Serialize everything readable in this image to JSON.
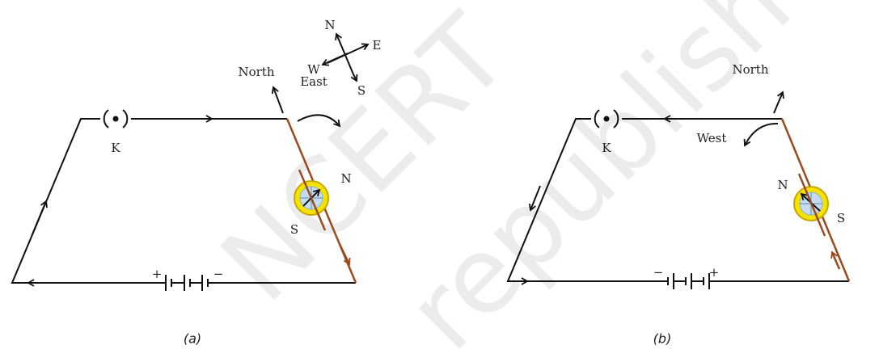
{
  "watermark": [
    "NCERT",
    "republished"
  ],
  "compass_rose": {
    "north": "N",
    "east": "E",
    "west": "W",
    "south": "S"
  },
  "panels": [
    {
      "caption": "(a)",
      "key": "K",
      "north": "North",
      "deflection": "East",
      "needle_north": "N",
      "needle_south": "S",
      "battery_positive": "+",
      "battery_negative": "−"
    },
    {
      "caption": "(b)",
      "key": "K",
      "north": "North",
      "deflection": "West",
      "needle_north": "N",
      "needle_south": "S",
      "battery_positive": "+",
      "battery_negative": "−"
    }
  ]
}
